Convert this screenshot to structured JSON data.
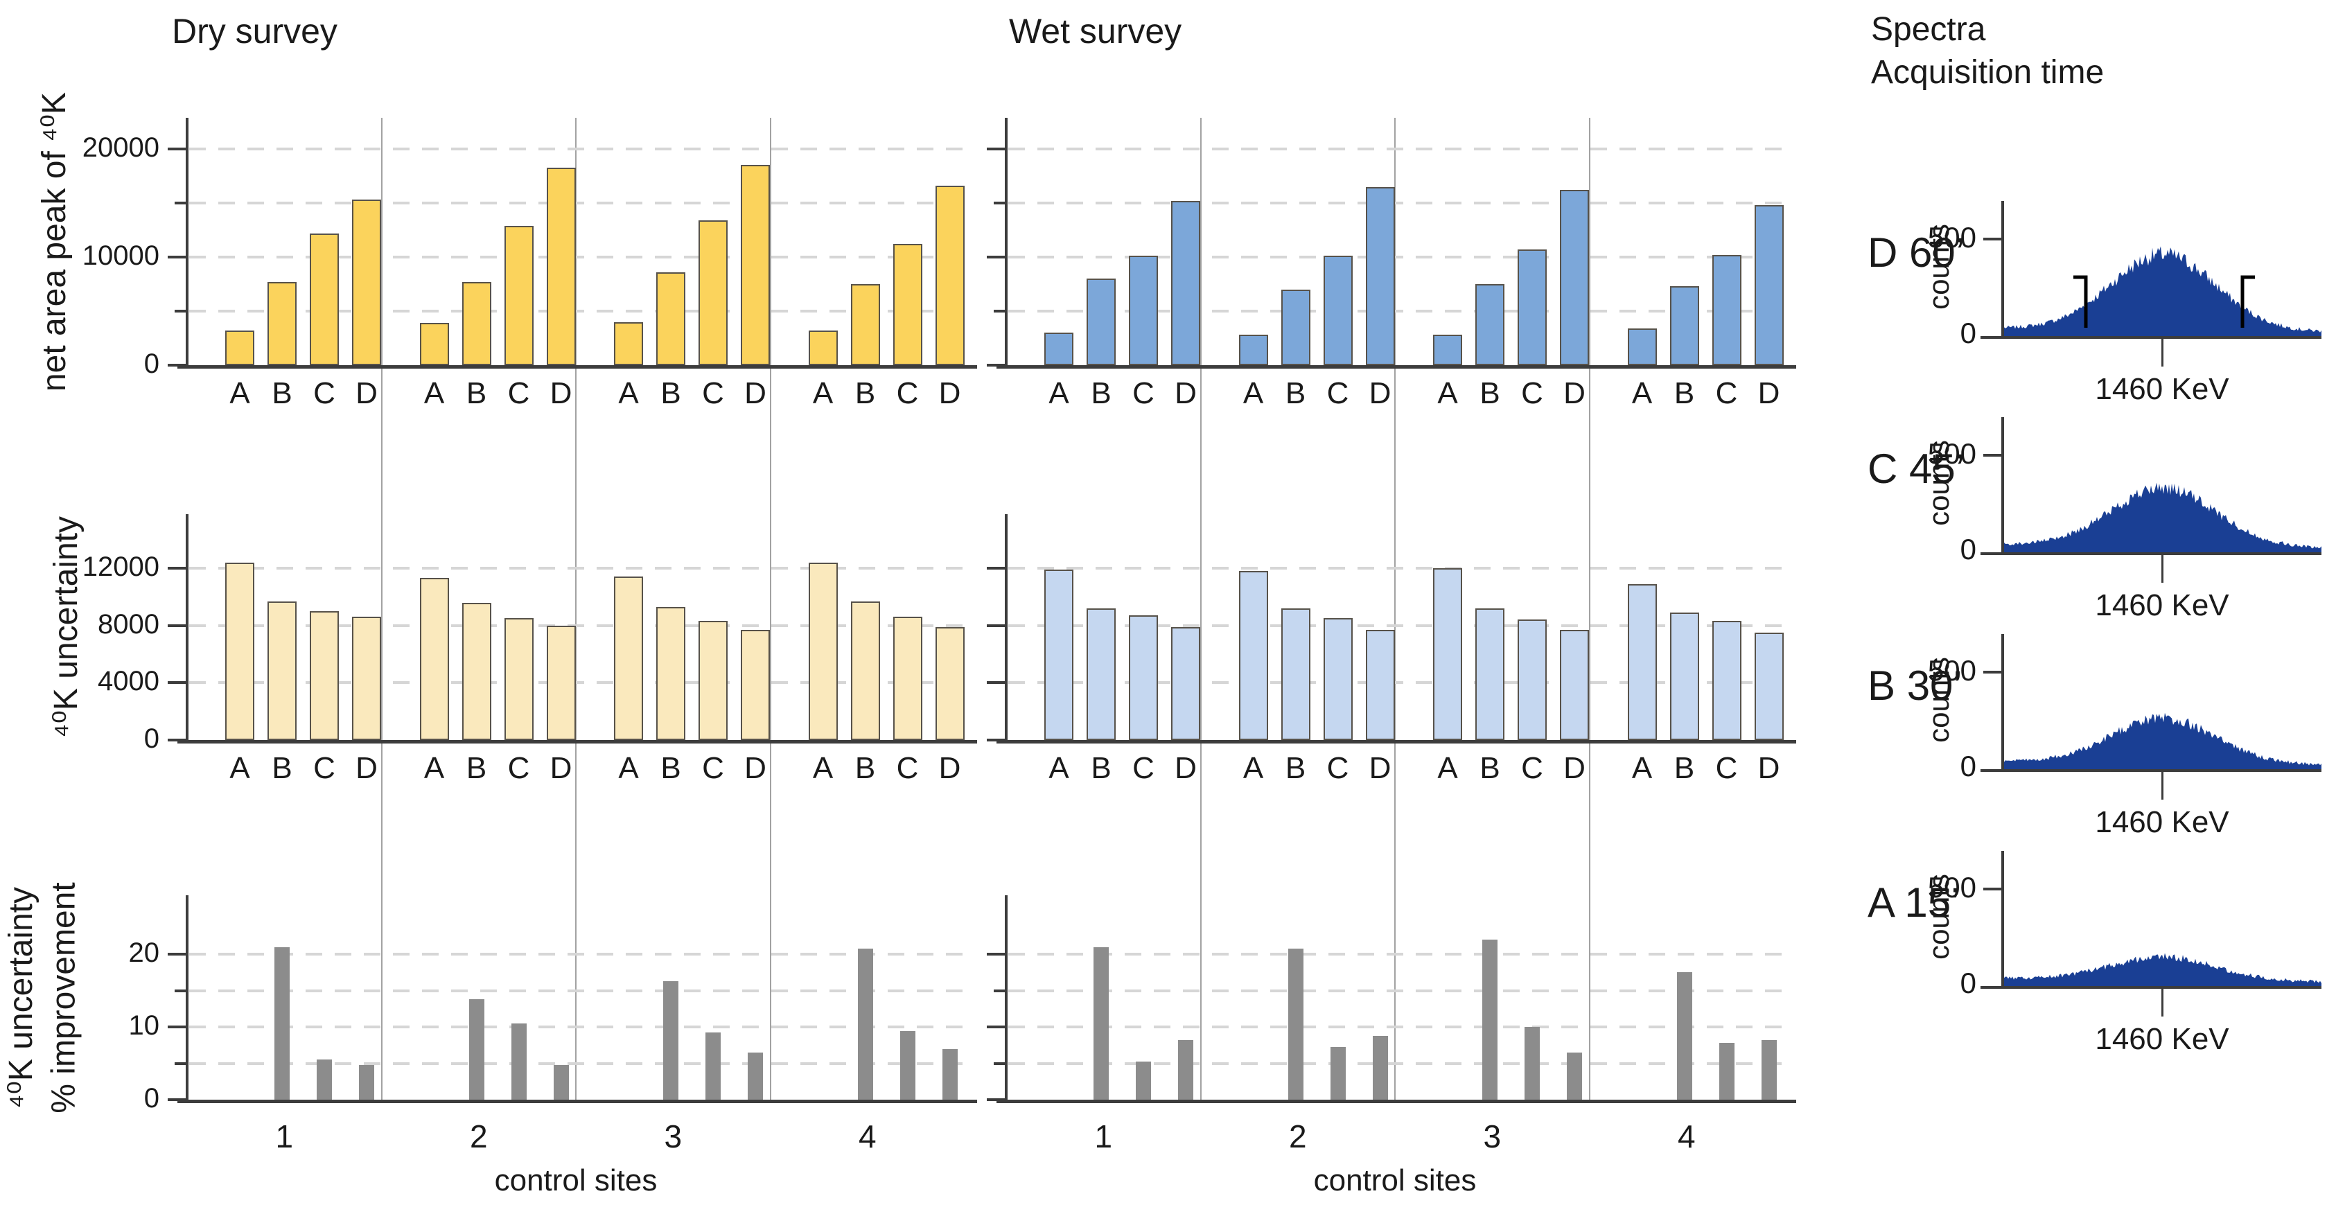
{
  "figure": {
    "dry_title": "Dry survey",
    "wet_title": "Wet survey",
    "spectra_title_line1": "Spectra",
    "spectra_title_line2": "Acquisition time"
  },
  "colors": {
    "dry_strong": "#fbd35c",
    "dry_pale": "#fae9bd",
    "wet_strong": "#7ca7d9",
    "wet_pale": "#c5d7f0",
    "improvement_gray": "#8c8c8c",
    "bar_border": "#57524a",
    "spectrum_navy": "#1a3f94",
    "axis": "#3c3c3c",
    "divider": "#a2a2a2",
    "gridline": "#d6d6d6"
  },
  "chart_data": [
    {
      "type": "bar",
      "id": "net-area-peak",
      "ylabel_lines": [
        "net area peak of ⁴⁰K"
      ],
      "yticks": [
        {
          "value": 0,
          "label": "0"
        },
        {
          "value": 10000,
          "label": "10000"
        },
        {
          "value": 20000,
          "label": "20000"
        }
      ],
      "minor_ticks": [
        5000,
        15000
      ],
      "gridlines": [
        5000,
        10000,
        15000,
        20000
      ],
      "ylim": [
        0,
        22900
      ],
      "categories": [
        "A",
        "B",
        "C",
        "D"
      ],
      "series": {
        "dry": {
          "color_key": "dry_strong",
          "values": [
            [
              3200,
              7700,
              12200,
              15300
            ],
            [
              3900,
              7700,
              12900,
              18300
            ],
            [
              4000,
              8600,
              13400,
              18500
            ],
            [
              3200,
              7500,
              11200,
              16600
            ]
          ]
        },
        "wet": {
          "color_key": "wet_strong",
          "values": [
            [
              3000,
              8000,
              10100,
              15200
            ],
            [
              2800,
              7000,
              10100,
              16500
            ],
            [
              2800,
              7500,
              10700,
              16200
            ],
            [
              3400,
              7300,
              10200,
              14800
            ]
          ]
        }
      }
    },
    {
      "type": "bar",
      "id": "k40-uncertainty",
      "ylabel_lines": [
        "⁴⁰K uncertainty"
      ],
      "yticks": [
        {
          "value": 0,
          "label": "0"
        },
        {
          "value": 4000,
          "label": "4000"
        },
        {
          "value": 8000,
          "label": "8000"
        },
        {
          "value": 12000,
          "label": "12000"
        }
      ],
      "minor_ticks": [],
      "gridlines": [
        4000,
        8000,
        12000
      ],
      "ylim": [
        0,
        15800
      ],
      "categories": [
        "A",
        "B",
        "C",
        "D"
      ],
      "series": {
        "dry": {
          "color_key": "dry_pale",
          "values": [
            [
              12400,
              9700,
              9000,
              8600
            ],
            [
              11300,
              9600,
              8500,
              8000
            ],
            [
              11400,
              9300,
              8300,
              7700
            ],
            [
              12400,
              9700,
              8600,
              7900
            ]
          ]
        },
        "wet": {
          "color_key": "wet_pale",
          "values": [
            [
              11900,
              9200,
              8700,
              7900
            ],
            [
              11800,
              9200,
              8500,
              7700
            ],
            [
              12000,
              9200,
              8400,
              7700
            ],
            [
              10900,
              8900,
              8300,
              7500
            ]
          ]
        }
      }
    },
    {
      "type": "bar",
      "id": "uncertainty-improvement",
      "ylabel_lines": [
        "⁴⁰K uncertainty",
        "% improvement"
      ],
      "yticks": [
        {
          "value": 0,
          "label": "0"
        },
        {
          "value": 10,
          "label": "10"
        },
        {
          "value": 20,
          "label": "20"
        }
      ],
      "minor_ticks": [
        5,
        15
      ],
      "gridlines": [
        5,
        10,
        15,
        20
      ],
      "ylim": [
        0,
        28
      ],
      "categories": [
        "B",
        "C",
        "D"
      ],
      "xlabel": "control sites",
      "site_labels": [
        "1",
        "2",
        "3",
        "4"
      ],
      "series": {
        "dry": {
          "color_key": "improvement_gray",
          "values": [
            [
              21,
              5.5,
              4.8
            ],
            [
              13.8,
              10.5,
              4.8
            ],
            [
              16.3,
              9.2,
              6.5
            ],
            [
              20.8,
              9.4,
              7.0
            ]
          ]
        },
        "wet": {
          "color_key": "improvement_gray",
          "values": [
            [
              21,
              5.2,
              8.2
            ],
            [
              20.8,
              7.2,
              8.8
            ],
            [
              22,
              10,
              6.5
            ],
            [
              17.5,
              7.8,
              8.2
            ]
          ]
        }
      }
    },
    {
      "type": "area",
      "id": "spectra",
      "ylabel": "counts",
      "ytick_top": "500",
      "ytick_bottom": "0",
      "xlabel": "1460 KeV",
      "items": [
        {
          "label": "D",
          "time": "60’",
          "peak_counts": 390,
          "markers": true
        },
        {
          "label": "C",
          "time": "45’",
          "peak_counts": 300,
          "markers": false
        },
        {
          "label": "B",
          "time": "30’",
          "peak_counts": 230,
          "markers": false
        },
        {
          "label": "A",
          "time": "15’",
          "peak_counts": 120,
          "markers": false
        }
      ]
    }
  ]
}
